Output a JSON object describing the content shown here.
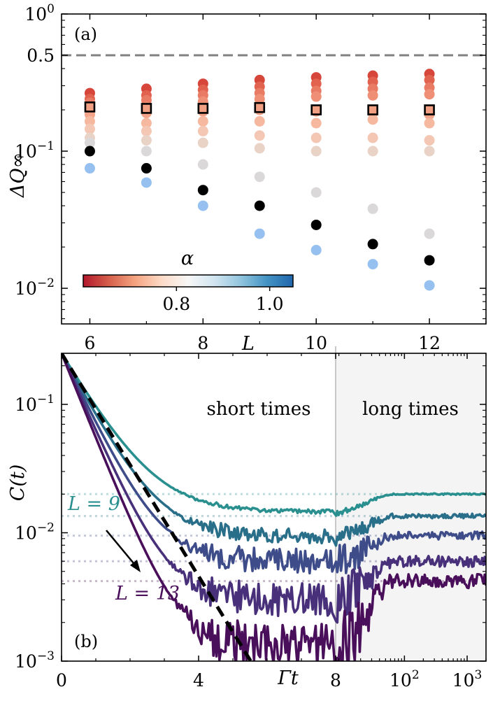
{
  "chart_data": [
    {
      "panel_label": "(a)",
      "type": "scatter",
      "xlabel": "L",
      "ylabel": "ΔQ∞",
      "yscale": "log",
      "xlim": [
        5.5,
        13.0
      ],
      "ylim": [
        0.0055,
        1.0
      ],
      "x_ticks": [
        6,
        8,
        10,
        12
      ],
      "x_tick_labels": [
        "6",
        "8",
        "10",
        "12"
      ],
      "y_ticks": [
        1.0,
        0.5,
        0.1,
        0.01
      ],
      "y_tick_labels": [
        [
          "10",
          "0"
        ],
        [
          "0.5",
          ""
        ],
        [
          "10",
          "−1"
        ],
        [
          "10",
          "−2"
        ]
      ],
      "reference_line": {
        "y": 0.5,
        "style": "dashed",
        "color": "#808080"
      },
      "colorbar": {
        "label": "α",
        "ticks": [
          0.8,
          1.0
        ],
        "tick_labels": [
          "0.8",
          "1.0"
        ],
        "range": [
          0.6,
          1.05
        ],
        "stops": [
          "#b2182b",
          "#d6604d",
          "#f4a582",
          "#fddbc7",
          "#f7f7f7",
          "#d1e5f0",
          "#92c5de",
          "#4393c3",
          "#2166ac"
        ]
      },
      "x": [
        6,
        7,
        8,
        9,
        10,
        11,
        12
      ],
      "series": [
        {
          "alpha": 0.6,
          "color": "#d6463b",
          "values": [
            0.265,
            0.285,
            0.31,
            0.33,
            0.345,
            0.355,
            0.365
          ]
        },
        {
          "alpha": 0.63,
          "color": "#e0624f",
          "values": [
            0.24,
            0.255,
            0.28,
            0.295,
            0.31,
            0.32,
            0.33
          ]
        },
        {
          "alpha": 0.66,
          "color": "#e97a63",
          "values": [
            0.225,
            0.235,
            0.255,
            0.265,
            0.275,
            0.285,
            0.29
          ]
        },
        {
          "alpha": 0.69,
          "color": "#ef8f76",
          "values": [
            0.205,
            0.21,
            0.23,
            0.24,
            0.25,
            0.255,
            0.26
          ]
        },
        {
          "alpha": 0.72,
          "color": "#f3a489",
          "values": [
            0.185,
            0.19,
            0.195,
            0.2,
            0.195,
            0.19,
            0.185
          ]
        },
        {
          "alpha": 0.75,
          "color": "#f6b89f",
          "values": [
            0.165,
            0.16,
            0.165,
            0.165,
            0.16,
            0.17,
            0.16
          ]
        },
        {
          "alpha": 0.78,
          "color": "#f3c7b3",
          "values": [
            0.145,
            0.14,
            0.14,
            0.13,
            0.125,
            0.125,
            0.12
          ]
        },
        {
          "alpha": 0.81,
          "color": "#e9d3c7",
          "values": [
            0.125,
            0.12,
            0.115,
            0.105,
            0.1,
            0.1,
            0.1
          ]
        },
        {
          "alpha": 0.84,
          "color": "#dad8d8",
          "values": [
            0.115,
            0.1,
            0.08,
            0.065,
            0.05,
            0.038,
            0.025
          ]
        },
        {
          "alpha": 0.9,
          "color": "#000000",
          "label": "black markers",
          "values": [
            0.1,
            0.075,
            0.052,
            0.04,
            0.029,
            0.021,
            0.016
          ]
        },
        {
          "alpha": 0.95,
          "color": "#95c0ef",
          "values": [
            0.075,
            0.059,
            0.04,
            0.025,
            0.019,
            0.015,
            0.0105
          ]
        }
      ],
      "square_markers": {
        "x": [
          6,
          7,
          8,
          9,
          10,
          11,
          12
        ],
        "values": [
          0.21,
          0.205,
          0.205,
          0.208,
          0.2,
          0.2,
          0.2
        ],
        "fill": "#f1a084",
        "edge": "#000000"
      }
    },
    {
      "panel_label": "(b)",
      "type": "line",
      "xlabel": "Γt",
      "ylabel": "C(t)",
      "yscale": "log",
      "ylim": [
        0.001,
        0.25
      ],
      "x_ticks": [
        0,
        4,
        8,
        100,
        1000
      ],
      "x_tick_labels": [
        [
          "0",
          ""
        ],
        [
          "4",
          ""
        ],
        [
          "8",
          ""
        ],
        [
          "10",
          "2"
        ],
        [
          "10",
          "3"
        ]
      ],
      "y_ticks": [
        0.1,
        0.01,
        0.001
      ],
      "y_tick_labels": [
        [
          "10",
          "−1"
        ],
        [
          "10",
          "−2"
        ],
        [
          "10",
          "−3"
        ]
      ],
      "axis_note": "linear for Γt 0–8, logarithmic for Γt 8–2000",
      "region_labels": [
        "short times",
        "long times"
      ],
      "series_labels": [
        "L = 9",
        "L = 13"
      ],
      "series": [
        {
          "L": 9,
          "color": "#2a8f8f",
          "plateau": 0.02,
          "min": 0.0145
        },
        {
          "L": 10,
          "color": "#2a6f8a",
          "plateau": 0.0135,
          "min": 0.0094
        },
        {
          "L": 11,
          "color": "#3e4d8a",
          "plateau": 0.0095,
          "min": 0.006
        },
        {
          "L": 12,
          "color": "#48317a",
          "plateau": 0.006,
          "min": 0.003
        },
        {
          "L": 13,
          "color": "#4a0f5a",
          "plateau": 0.0042,
          "min": 0.0013
        }
      ],
      "reference": {
        "style": "dashed",
        "color": "#000000",
        "law": "exp(-Γt)",
        "y0": 0.25
      }
    }
  ]
}
